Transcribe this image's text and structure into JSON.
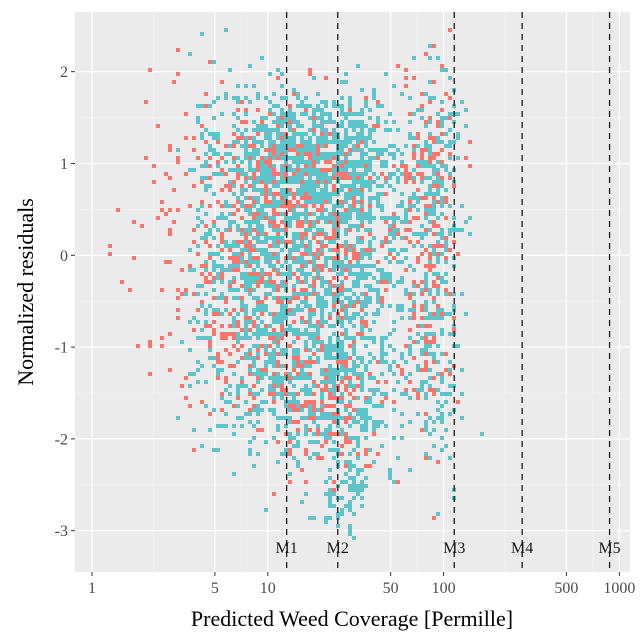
{
  "chart_data": {
    "type": "heatmap",
    "title": "",
    "xlabel": "Predicted Weed Coverage [Permille]",
    "ylabel": "Normalized residuals",
    "x_scale": "log10",
    "xlim": [
      0.8,
      1150
    ],
    "ylim": [
      -3.45,
      2.65
    ],
    "x_ticks": [
      1,
      5,
      10,
      50,
      100,
      500,
      1000
    ],
    "x_tick_labels": [
      "1",
      "5",
      "10",
      "50",
      "100",
      "500",
      "1000"
    ],
    "y_ticks": [
      -3,
      -2,
      -1,
      0,
      1,
      2
    ],
    "y_tick_labels": [
      "-3",
      "-2",
      "-1",
      "0",
      "1",
      "2"
    ],
    "grid": true,
    "legend": "none",
    "colors": {
      "panel_background": "#ebebeb",
      "grid_major": "#ffffff",
      "grid_minor": "#f5f5f5",
      "series_a": "#f8766d",
      "series_b": "#5dc5c9",
      "vline": "#1a1a1a"
    },
    "vlines": [
      {
        "label": "M1",
        "x": 12.8
      },
      {
        "label": "M2",
        "x": 25
      },
      {
        "label": "M3",
        "x": 115
      },
      {
        "label": "M4",
        "x": 280
      },
      {
        "label": "M5",
        "x": 880
      }
    ],
    "series": [
      {
        "color": "#5dc5c9",
        "clusters": [
          {
            "x": 12,
            "y": 1.1,
            "sx": 0.18,
            "sy": 0.35,
            "n": 520
          },
          {
            "x": 28,
            "y": 1.1,
            "sx": 0.16,
            "sy": 0.35,
            "n": 420
          },
          {
            "x": 10,
            "y": 0.0,
            "sx": 0.2,
            "sy": 0.55,
            "n": 500
          },
          {
            "x": 25,
            "y": 0.0,
            "sx": 0.18,
            "sy": 0.6,
            "n": 480
          },
          {
            "x": 12,
            "y": -1.3,
            "sx": 0.2,
            "sy": 0.45,
            "n": 380
          },
          {
            "x": 28,
            "y": -1.5,
            "sx": 0.15,
            "sy": 0.55,
            "n": 330
          },
          {
            "x": 90,
            "y": 0.8,
            "sx": 0.07,
            "sy": 0.8,
            "n": 160
          },
          {
            "x": 90,
            "y": -1.0,
            "sx": 0.07,
            "sy": 0.7,
            "n": 130
          },
          {
            "x": 60,
            "y": 0.0,
            "sx": 0.12,
            "sy": 0.9,
            "n": 170
          },
          {
            "x": 6,
            "y": 0.4,
            "sx": 0.12,
            "sy": 0.9,
            "n": 160
          },
          {
            "x": 27,
            "y": -2.6,
            "sx": 0.07,
            "sy": 0.25,
            "n": 50
          }
        ]
      },
      {
        "color": "#f8766d",
        "clusters": [
          {
            "x": 10,
            "y": 0.8,
            "sx": 0.2,
            "sy": 0.45,
            "n": 190
          },
          {
            "x": 24,
            "y": 0.4,
            "sx": 0.2,
            "sy": 0.6,
            "n": 190
          },
          {
            "x": 8,
            "y": -0.6,
            "sx": 0.22,
            "sy": 0.55,
            "n": 190
          },
          {
            "x": 20,
            "y": -1.6,
            "sx": 0.18,
            "sy": 0.4,
            "n": 150
          },
          {
            "x": 80,
            "y": 1.0,
            "sx": 0.09,
            "sy": 0.7,
            "n": 110
          },
          {
            "x": 80,
            "y": -0.8,
            "sx": 0.09,
            "sy": 0.6,
            "n": 80
          },
          {
            "x": 3,
            "y": 0.2,
            "sx": 0.15,
            "sy": 0.8,
            "n": 70
          },
          {
            "x": 1.4,
            "y": 0.0,
            "sx": 0.06,
            "sy": 0.1,
            "n": 3
          }
        ]
      }
    ]
  }
}
